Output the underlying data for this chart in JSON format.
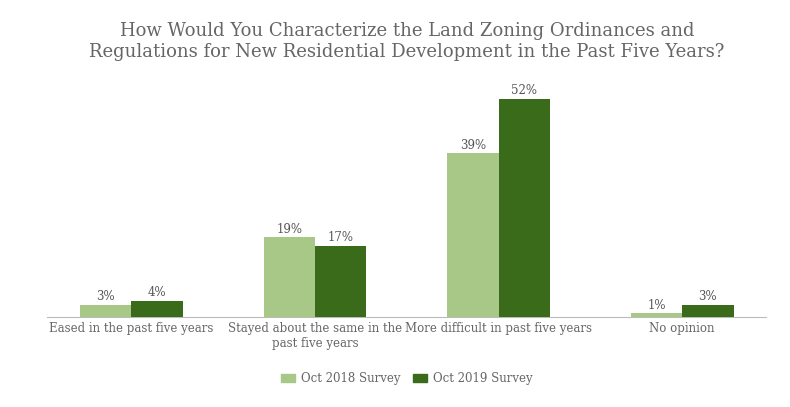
{
  "title": "How Would You Characterize the Land Zoning Ordinances and\nRegulations for New Residential Development in the Past Five Years?",
  "categories": [
    "Eased in the past five years",
    "Stayed about the same in the\npast five years",
    "More difficult in past five years",
    "No opinion"
  ],
  "values_2018": [
    3,
    19,
    39,
    1
  ],
  "values_2019": [
    4,
    17,
    52,
    3
  ],
  "color_2018": "#a8c888",
  "color_2019": "#3a6b1a",
  "legend_2018": "Oct 2018 Survey",
  "legend_2019": "Oct 2019 Survey",
  "bar_width": 0.28,
  "ylim": [
    0,
    58
  ],
  "title_fontsize": 13,
  "label_fontsize": 8.5,
  "tick_fontsize": 8.5,
  "legend_fontsize": 8.5,
  "background_color": "#ffffff",
  "title_color": "#666666",
  "label_color": "#555555",
  "tick_color": "#666666",
  "spine_color": "#bbbbbb"
}
